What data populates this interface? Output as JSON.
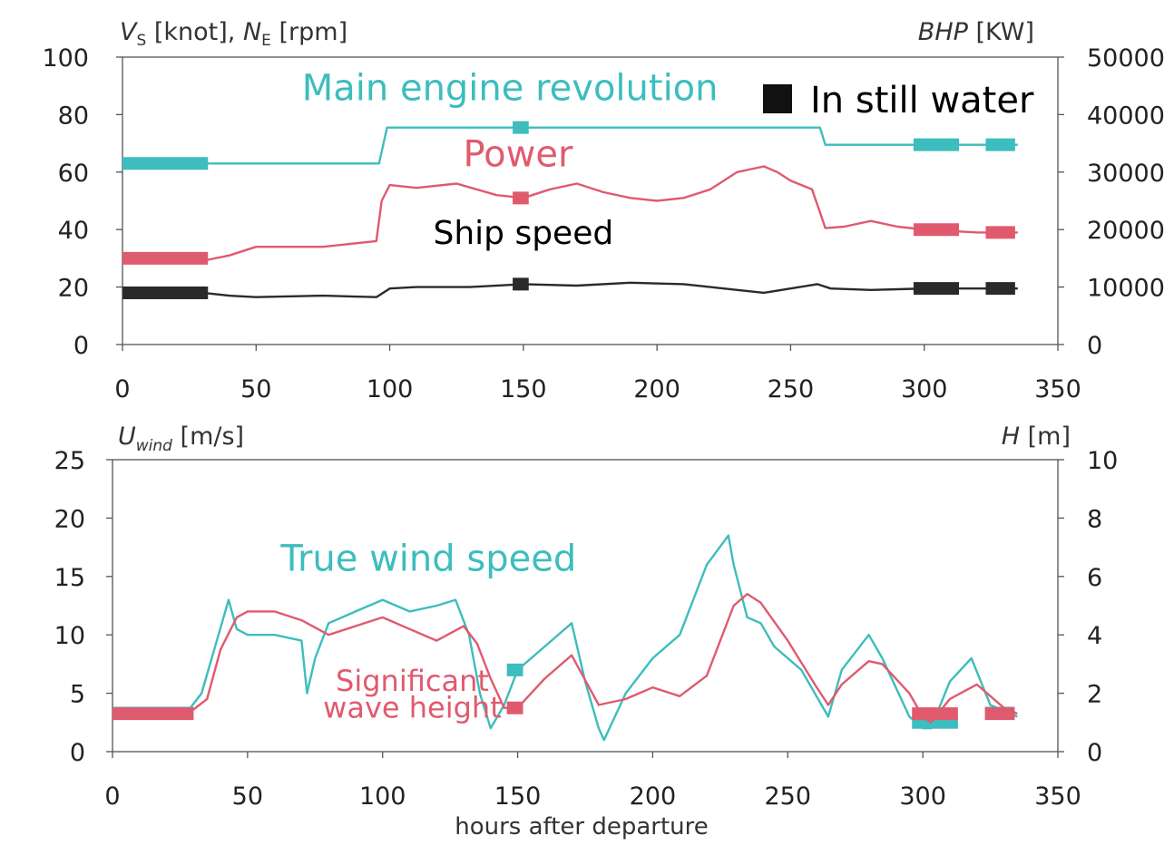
{
  "chart_data": [
    {
      "type": "line",
      "xlim": [
        0,
        350
      ],
      "x_ticks": [
        "0",
        "50",
        "100",
        "150",
        "200",
        "250",
        "300",
        "350"
      ],
      "ylim": [
        0,
        100
      ],
      "y_ticks": [
        "0",
        "20",
        "40",
        "60",
        "80",
        "100"
      ],
      "y2lim": [
        0,
        50000
      ],
      "y2_ticks": [
        "0",
        "10000",
        "20000",
        "30000",
        "40000",
        "50000"
      ],
      "ylabel": {
        "main": "V",
        "sub1": "S",
        "mid": " [knot], ",
        "main2": "N",
        "sub2": "E",
        "unit": " [rpm]"
      },
      "y2label": {
        "main": "BHP",
        "unit": " [KW]"
      },
      "legend": {
        "marker": "square",
        "label": "In still water"
      },
      "series": [
        {
          "name": "Main engine revolution",
          "axis": "left",
          "color": "#3dbdbd",
          "x": [
            0,
            96,
            99,
            149,
            261,
            263,
            335
          ],
          "y": [
            63,
            63,
            75.5,
            75.5,
            75.5,
            69.5,
            69.5
          ],
          "still_water": [
            {
              "x0": 0,
              "x1": 32,
              "y": 63
            },
            {
              "x0": 146,
              "x1": 152,
              "y": 75.5
            },
            {
              "x0": 296,
              "x1": 313,
              "y": 69.5
            },
            {
              "x0": 323,
              "x1": 334,
              "y": 69.5
            }
          ]
        },
        {
          "name": "Power",
          "axis": "left",
          "color": "#e05a6e",
          "x": [
            0,
            20,
            32,
            40,
            50,
            75,
            95,
            97,
            100,
            110,
            125,
            140,
            150,
            160,
            170,
            180,
            190,
            200,
            210,
            220,
            230,
            240,
            245,
            250,
            258,
            261,
            263,
            270,
            280,
            290,
            300,
            320,
            335
          ],
          "y": [
            30,
            30,
            29.5,
            31,
            34,
            34,
            36,
            50,
            55.5,
            54.5,
            56,
            52,
            51,
            54,
            56,
            53,
            51,
            50,
            51,
            54,
            60,
            62,
            60,
            57,
            54,
            46,
            40.5,
            41,
            43,
            41,
            40,
            39,
            39
          ],
          "still_water": [
            {
              "x0": 0,
              "x1": 32,
              "y": 30
            },
            {
              "x0": 146,
              "x1": 152,
              "y": 51
            },
            {
              "x0": 296,
              "x1": 313,
              "y": 40
            },
            {
              "x0": 323,
              "x1": 334,
              "y": 39
            }
          ]
        },
        {
          "name": "Ship speed",
          "axis": "left",
          "color": "#2a2a2a",
          "x": [
            0,
            30,
            40,
            50,
            75,
            95,
            100,
            110,
            130,
            150,
            170,
            190,
            210,
            230,
            240,
            250,
            260,
            265,
            280,
            300,
            335
          ],
          "y": [
            18,
            18,
            17,
            16.5,
            17,
            16.5,
            19.5,
            20,
            20,
            21,
            20.5,
            21.5,
            21,
            19,
            18,
            19.5,
            21,
            19.5,
            19,
            19.5,
            19.5
          ],
          "still_water": [
            {
              "x0": 0,
              "x1": 32,
              "y": 18
            },
            {
              "x0": 146,
              "x1": 152,
              "y": 21
            },
            {
              "x0": 296,
              "x1": 313,
              "y": 19.5
            },
            {
              "x0": 323,
              "x1": 334,
              "y": 19.5
            }
          ]
        }
      ],
      "annotations": [
        {
          "text": "Main engine revolution",
          "color": "#3dbdbd",
          "x": 145,
          "y": 85
        },
        {
          "text": "Power",
          "color": "#e05a6e",
          "x": 148,
          "y": 62
        },
        {
          "text": "Ship speed",
          "color": "#000000",
          "x": 150,
          "y": 35
        }
      ]
    },
    {
      "type": "line",
      "xlim": [
        0,
        350
      ],
      "x_ticks": [
        "0",
        "50",
        "100",
        "150",
        "200",
        "250",
        "300",
        "350"
      ],
      "ylim": [
        0,
        25
      ],
      "y_ticks": [
        "0",
        "5",
        "10",
        "15",
        "20",
        "25"
      ],
      "y2lim": [
        0,
        10
      ],
      "y2_ticks": [
        "0",
        "2",
        "4",
        "6",
        "8",
        "10"
      ],
      "ylabel": {
        "main": "U",
        "sub1": "wind",
        "unit": " [m/s]"
      },
      "y2label": {
        "main": "H",
        "unit": " [m]"
      },
      "xlabel": "hours after departure",
      "series": [
        {
          "name": "True wind speed",
          "axis": "left",
          "color": "#3dbdbd",
          "x": [
            0,
            10,
            20,
            28,
            33,
            38,
            43,
            46,
            50,
            60,
            70,
            72,
            75,
            80,
            90,
            100,
            110,
            120,
            127,
            132,
            136,
            140,
            145,
            150,
            160,
            170,
            175,
            180,
            182,
            190,
            200,
            210,
            220,
            228,
            230,
            235,
            240,
            245,
            255,
            265,
            270,
            280,
            285,
            295,
            300,
            303,
            310,
            318,
            325,
            335
          ],
          "y": [
            3.5,
            3.5,
            3,
            3.5,
            5,
            9,
            13,
            10.5,
            10,
            10,
            9.5,
            5,
            8,
            11,
            12,
            13,
            12,
            12.5,
            13,
            10,
            5,
            2,
            4,
            7,
            9,
            11,
            6,
            2,
            1,
            5,
            8,
            10,
            16,
            18.5,
            16,
            11.5,
            11,
            9,
            7,
            3,
            7,
            10,
            8,
            3,
            2,
            2,
            6,
            8,
            4,
            3
          ],
          "still_water": [
            {
              "x0": 0,
              "x1": 30,
              "y": 3.3
            },
            {
              "x0": 146,
              "x1": 152,
              "y": 7
            },
            {
              "x0": 296,
              "x1": 313,
              "y": 2.5
            },
            {
              "x0": 323,
              "x1": 334,
              "y": 3.3
            }
          ]
        },
        {
          "name": "Significant wave height",
          "axis": "right",
          "color": "#e05a6e",
          "x": [
            0,
            10,
            20,
            28,
            35,
            40,
            46,
            50,
            60,
            70,
            80,
            90,
            100,
            110,
            120,
            130,
            135,
            140,
            145,
            150,
            160,
            170,
            180,
            190,
            200,
            210,
            220,
            230,
            235,
            240,
            250,
            260,
            265,
            270,
            280,
            285,
            295,
            300,
            303,
            310,
            320,
            330,
            335
          ],
          "y": [
            1.3,
            1.3,
            1.2,
            1.3,
            1.8,
            3.5,
            4.6,
            4.8,
            4.8,
            4.5,
            4.0,
            4.3,
            4.6,
            4.2,
            3.8,
            4.3,
            3.7,
            2.5,
            1.5,
            1.5,
            2.5,
            3.3,
            1.6,
            1.8,
            2.2,
            1.9,
            2.6,
            5.0,
            5.4,
            5.1,
            3.8,
            2.3,
            1.6,
            2.3,
            3.1,
            3.0,
            2.0,
            1.2,
            1.0,
            1.8,
            2.3,
            1.5,
            1.3
          ],
          "still_water": [
            {
              "x0": 0,
              "x1": 30,
              "y": 1.3
            },
            {
              "x0": 146,
              "x1": 152,
              "y": 1.5
            },
            {
              "x0": 296,
              "x1": 313,
              "y": 1.3
            },
            {
              "x0": 323,
              "x1": 334,
              "y": 1.3
            }
          ]
        }
      ],
      "annotations": [
        {
          "text": "True wind speed",
          "color": "#3dbdbd",
          "x": 117,
          "y": 15.5
        },
        {
          "text": "Significant",
          "color": "#e05a6e",
          "x": 111,
          "y": 5.2
        },
        {
          "text": "wave height",
          "color": "#e05a6e",
          "x": 111,
          "y": 2.9
        }
      ]
    }
  ]
}
